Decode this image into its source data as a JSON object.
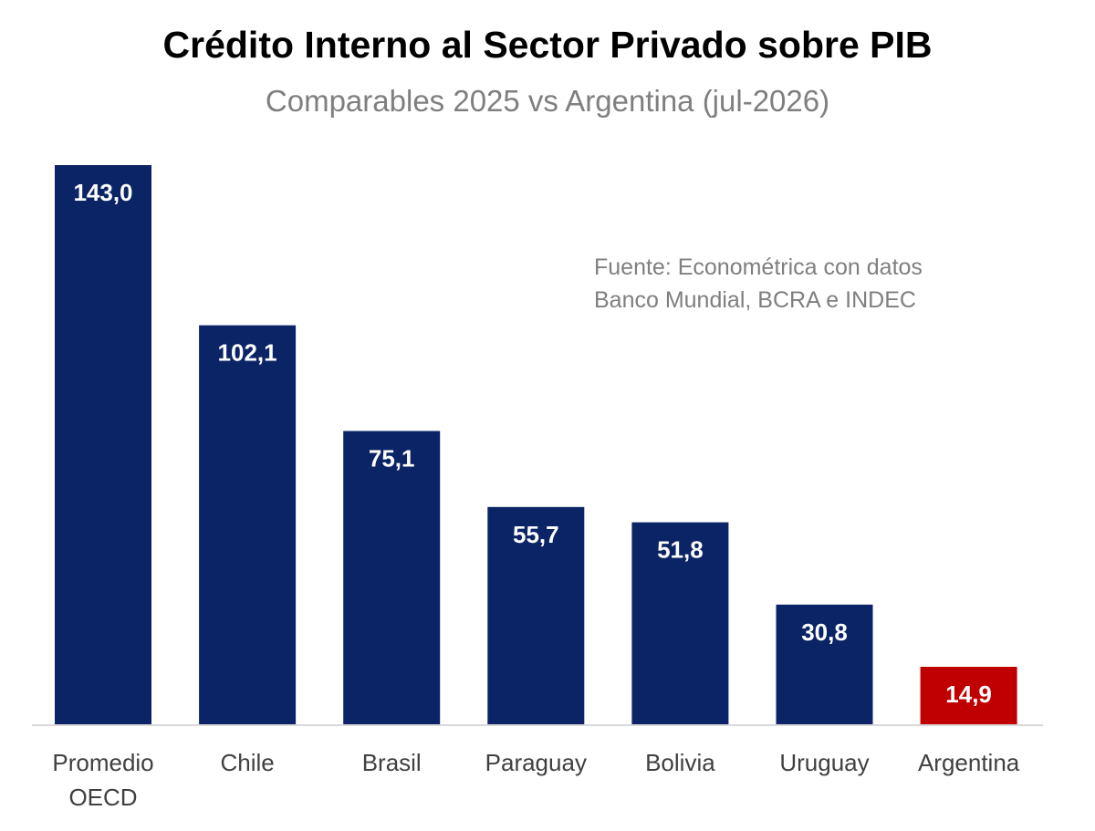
{
  "chart_data": {
    "type": "bar",
    "title": "Crédito Interno al Sector Privado sobre PIB",
    "subtitle": "Comparables 2025 vs Argentina (jul-2026)",
    "source_lines": [
      "Fuente: Econométrica con datos",
      "Banco Mundial, BCRA e INDEC"
    ],
    "categories": [
      [
        "Promedio",
        "OECD"
      ],
      [
        "Chile"
      ],
      [
        "Brasil"
      ],
      [
        "Paraguay"
      ],
      [
        "Bolivia"
      ],
      [
        "Uruguay"
      ],
      [
        "Argentina"
      ]
    ],
    "values": [
      143.0,
      102.1,
      75.1,
      55.7,
      51.8,
      30.8,
      14.9
    ],
    "value_labels": [
      "143,0",
      "102,1",
      "75,1",
      "55,7",
      "51,8",
      "30,8",
      "14,9"
    ],
    "bar_colors": [
      "#0a2466",
      "#0a2466",
      "#0a2466",
      "#0a2466",
      "#0a2466",
      "#0a2466",
      "#c00000"
    ],
    "ylim": [
      0,
      143.0
    ],
    "grid": false,
    "legend": "none"
  }
}
